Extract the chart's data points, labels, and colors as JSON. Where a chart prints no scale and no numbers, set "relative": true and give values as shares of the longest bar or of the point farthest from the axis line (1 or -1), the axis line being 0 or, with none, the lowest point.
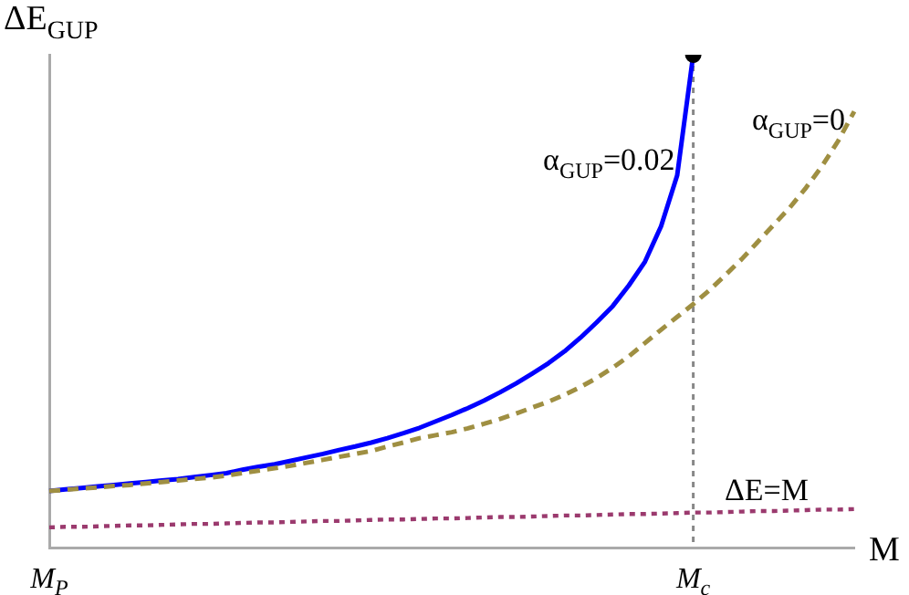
{
  "chart_data": {
    "type": "line",
    "xlabel": "M",
    "ylabel": "ΔE$_{GUP}$",
    "relative": true,
    "categories": [
      "M$_{P}$",
      null,
      null,
      null,
      null,
      null,
      null,
      null,
      null,
      null,
      null,
      null,
      null,
      null,
      null,
      null,
      null,
      null,
      null,
      null,
      null,
      null,
      null,
      null,
      null,
      null,
      null,
      null,
      null,
      null,
      null,
      null,
      null,
      null,
      null,
      null,
      null,
      null,
      null,
      null,
      "M$_{c}$",
      null,
      null,
      null,
      null,
      null,
      null,
      null,
      null,
      null,
      null
    ],
    "grid": false,
    "legend": false,
    "marker": "none",
    "ref_lines": [
      {
        "axis": "x",
        "value": "M$_{c}$",
        "color": "#888888",
        "line_style": "dotted"
      }
    ],
    "series": [
      {
        "name": "α$_{GUP}$=0.02",
        "color": "#0000ff",
        "line_style": "solid",
        "values": [
          0.115,
          0.118,
          0.121,
          0.124,
          0.127,
          0.13,
          0.133,
          0.136,
          0.139,
          0.143,
          0.147,
          0.151,
          0.158,
          0.164,
          0.169,
          0.176,
          0.183,
          0.19,
          0.198,
          0.205,
          0.213,
          0.222,
          0.232,
          0.243,
          0.256,
          0.269,
          0.283,
          0.298,
          0.315,
          0.333,
          0.353,
          0.374,
          0.398,
          0.426,
          0.457,
          0.49,
          0.532,
          0.58,
          0.652,
          0.755,
          1.0,
          null,
          null,
          null,
          null,
          null,
          null,
          null,
          null,
          null,
          null
        ]
      },
      {
        "name": "α$_{GUP}$=0",
        "color": "#9f8f42",
        "line_style": "dashed",
        "values": [
          0.115,
          0.117,
          0.12,
          0.122,
          0.125,
          0.127,
          0.13,
          0.133,
          0.136,
          0.139,
          0.142,
          0.146,
          0.151,
          0.156,
          0.161,
          0.166,
          0.172,
          0.178,
          0.184,
          0.19,
          0.196,
          0.205,
          0.213,
          0.222,
          0.228,
          0.234,
          0.242,
          0.251,
          0.261,
          0.272,
          0.284,
          0.296,
          0.31,
          0.326,
          0.344,
          0.365,
          0.388,
          0.415,
          0.442,
          0.468,
          0.494,
          0.522,
          0.553,
          0.585,
          0.62,
          0.655,
          0.69,
          0.73,
          0.774,
          0.825,
          0.885
        ]
      },
      {
        "name": "ΔE=M",
        "color": "#9b3a6e",
        "line_style": "dotted",
        "values": [
          0.041,
          0.042,
          0.042,
          0.043,
          0.044,
          0.045,
          0.045,
          0.046,
          0.047,
          0.048,
          0.048,
          0.049,
          0.05,
          0.051,
          0.051,
          0.052,
          0.053,
          0.054,
          0.054,
          0.055,
          0.056,
          0.057,
          0.057,
          0.058,
          0.059,
          0.059,
          0.06,
          0.061,
          0.062,
          0.062,
          0.063,
          0.064,
          0.065,
          0.065,
          0.066,
          0.067,
          0.068,
          0.068,
          0.069,
          0.07,
          0.071,
          0.071,
          0.072,
          0.073,
          0.074,
          0.074,
          0.075,
          0.076,
          0.077,
          0.077,
          0.078
        ]
      },
      {
        "type": "scatter",
        "color": "#000000",
        "marker": "circle",
        "values": [
          null,
          null,
          null,
          null,
          null,
          null,
          null,
          null,
          null,
          null,
          null,
          null,
          null,
          null,
          null,
          null,
          null,
          null,
          null,
          null,
          null,
          null,
          null,
          null,
          null,
          null,
          null,
          null,
          null,
          null,
          null,
          null,
          null,
          null,
          null,
          null,
          null,
          null,
          null,
          null,
          1.0,
          null,
          null,
          null,
          null,
          null,
          null,
          null,
          null,
          null,
          null
        ]
      }
    ]
  }
}
